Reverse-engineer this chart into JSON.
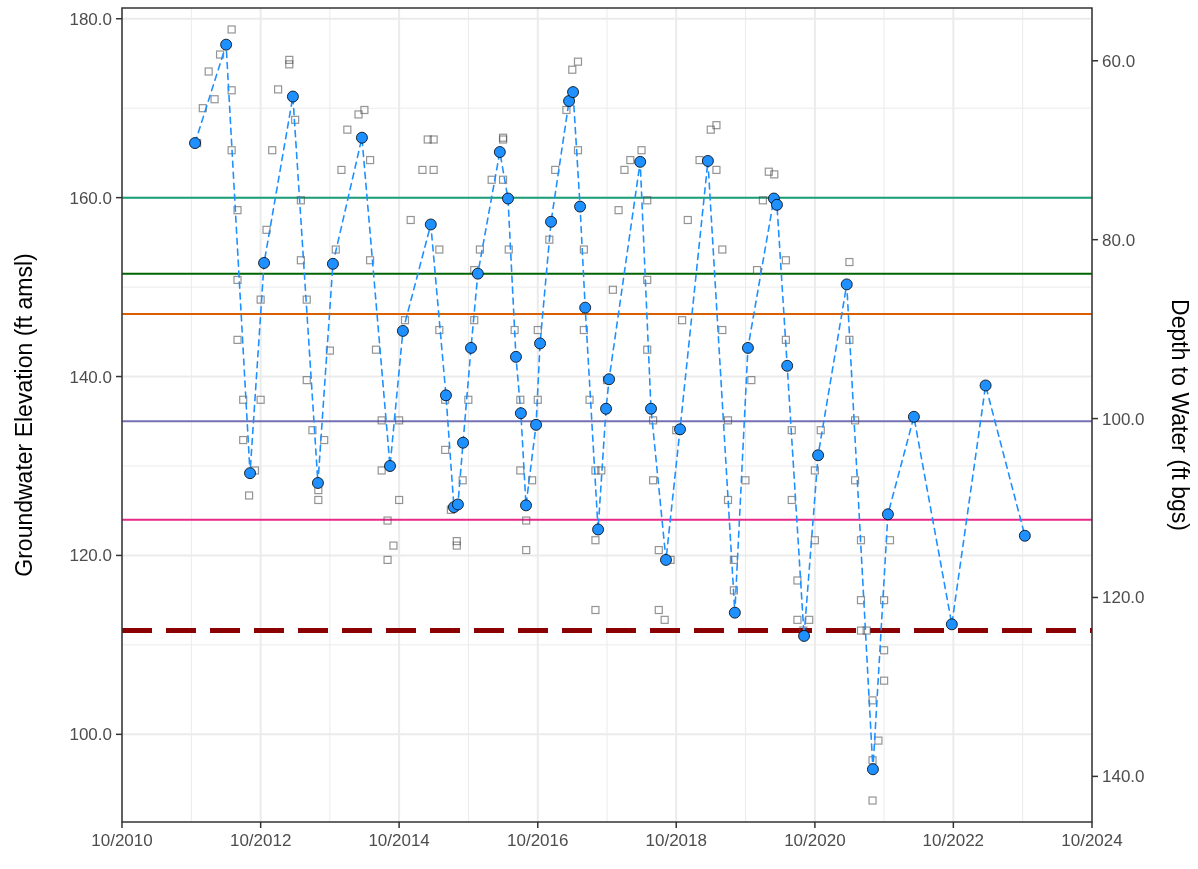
{
  "chart_data": {
    "type": "scatter",
    "ylabel": "Groundwater Elevation (ft amsl)",
    "y2label": "Depth to Water (ft bgs)",
    "xlim": [
      "2010-10",
      "2024-10"
    ],
    "xticks": [
      {
        "value": "2010-10",
        "label": "10/2010"
      },
      {
        "value": "2012-10",
        "label": "10/2012"
      },
      {
        "value": "2014-10",
        "label": "10/2014"
      },
      {
        "value": "2016-10",
        "label": "10/2016"
      },
      {
        "value": "2018-10",
        "label": "10/2018"
      },
      {
        "value": "2020-10",
        "label": "10/2020"
      },
      {
        "value": "2022-10",
        "label": "10/2022"
      },
      {
        "value": "2024-10",
        "label": "10/2024"
      }
    ],
    "ylim": [
      90.2,
      181.2
    ],
    "yticks": [
      {
        "value": 100,
        "label": "100.0"
      },
      {
        "value": 120,
        "label": "120.0"
      },
      {
        "value": 140,
        "label": "140.0"
      },
      {
        "value": 160,
        "label": "160.0"
      },
      {
        "value": 180,
        "label": "180.0"
      }
    ],
    "y2lim": [
      145.1,
      54.1
    ],
    "y2ticks": [
      {
        "value": 60,
        "label": "60.0"
      },
      {
        "value": 80,
        "label": "80.0"
      },
      {
        "value": 100,
        "label": "100.0"
      },
      {
        "value": 120,
        "label": "120.0"
      },
      {
        "value": 140,
        "label": "140.0"
      }
    ],
    "grid": true,
    "ref_lines": [
      {
        "axis": "y",
        "value": 160,
        "color": "#1b9e77"
      },
      {
        "axis": "y",
        "value": 151.5,
        "color": "#006400"
      },
      {
        "axis": "y",
        "value": 147,
        "color": "#d95f02"
      },
      {
        "axis": "y",
        "value": 135,
        "color": "#7570b3"
      },
      {
        "axis": "y",
        "value": 124,
        "color": "#e7298a"
      },
      {
        "axis": "y",
        "value": 111.6,
        "color": "#8b0000",
        "line_style": "dashed"
      }
    ],
    "series": [
      {
        "type": "scatter",
        "marker": "square",
        "color": "#4d4d4d",
        "x": [
          "2011-11",
          "2011-12",
          "2012-01",
          "2012-02",
          "2012-03",
          "2012-05",
          "2012-05",
          "2012-05",
          "2012-06",
          "2012-06",
          "2012-06",
          "2012-07",
          "2012-07",
          "2012-08",
          "2012-09",
          "2012-10",
          "2012-10",
          "2012-11",
          "2012-12",
          "2013-01",
          "2013-03",
          "2013-03",
          "2013-04",
          "2013-05",
          "2013-05",
          "2013-06",
          "2013-06",
          "2013-07",
          "2013-08",
          "2013-08",
          "2013-09",
          "2013-10",
          "2013-11",
          "2013-12",
          "2014-01",
          "2014-03",
          "2014-04",
          "2014-05",
          "2014-05",
          "2014-06",
          "2014-07",
          "2014-07",
          "2014-08",
          "2014-08",
          "2014-09",
          "2014-10",
          "2014-10",
          "2014-11",
          "2014-12",
          "2015-02",
          "2015-03",
          "2015-04",
          "2015-04",
          "2015-05",
          "2015-05",
          "2015-06",
          "2015-06",
          "2015-07",
          "2015-08",
          "2015-08",
          "2015-09",
          "2015-10",
          "2015-11",
          "2015-11",
          "2015-12",
          "2016-02",
          "2016-04",
          "2016-04",
          "2016-04",
          "2016-05",
          "2016-06",
          "2016-07",
          "2016-07",
          "2016-08",
          "2016-08",
          "2016-09",
          "2016-10",
          "2016-10",
          "2016-12",
          "2017-01",
          "2017-03",
          "2017-04",
          "2017-05",
          "2017-05",
          "2017-06",
          "2017-06",
          "2017-07",
          "2017-08",
          "2017-08",
          "2017-08",
          "2017-09",
          "2017-10",
          "2017-11",
          "2017-12",
          "2018-01",
          "2018-02",
          "2018-04",
          "2018-05",
          "2018-05",
          "2018-05",
          "2018-06",
          "2018-06",
          "2018-07",
          "2018-07",
          "2018-08",
          "2018-09",
          "2018-10",
          "2018-11",
          "2018-12",
          "2019-02",
          "2019-04",
          "2019-05",
          "2019-05",
          "2019-06",
          "2019-06",
          "2019-07",
          "2019-07",
          "2019-08",
          "2019-08",
          "2019-10",
          "2019-11",
          "2019-12",
          "2020-01",
          "2020-02",
          "2020-03",
          "2020-05",
          "2020-05",
          "2020-06",
          "2020-06",
          "2020-07",
          "2020-07",
          "2020-08",
          "2020-09",
          "2020-10",
          "2020-10",
          "2020-11",
          "2021-04",
          "2021-04",
          "2021-05",
          "2021-05",
          "2021-06",
          "2021-06",
          "2021-06",
          "2021-07",
          "2021-08",
          "2021-08",
          "2021-08",
          "2021-09",
          "2021-10",
          "2021-10",
          "2021-10",
          "2021-11"
        ],
        "values": [
          166.1,
          170.0,
          174.1,
          171.0,
          176.0,
          178.8,
          172.0,
          165.3,
          158.6,
          150.8,
          144.1,
          137.4,
          132.9,
          126.7,
          129.5,
          137.4,
          148.6,
          156.4,
          165.3,
          172.1,
          175.4,
          174.9,
          168.7,
          159.7,
          153.0,
          148.6,
          139.6,
          134.0,
          127.3,
          126.2,
          132.9,
          142.9,
          154.2,
          163.1,
          167.6,
          169.3,
          169.8,
          164.2,
          153.0,
          143.0,
          135.1,
          129.5,
          119.5,
          123.9,
          121.1,
          126.2,
          135.1,
          146.3,
          157.5,
          163.1,
          166.5,
          166.5,
          163.1,
          154.2,
          145.2,
          137.4,
          131.8,
          125.1,
          121.1,
          121.6,
          128.4,
          137.4,
          146.3,
          151.9,
          154.2,
          162.0,
          166.7,
          166.5,
          162.0,
          154.2,
          145.2,
          137.4,
          129.5,
          123.9,
          120.6,
          128.4,
          137.4,
          145.2,
          155.3,
          163.1,
          169.8,
          174.3,
          175.2,
          165.3,
          154.2,
          145.2,
          137.4,
          129.5,
          121.7,
          113.9,
          129.5,
          139.6,
          149.7,
          158.6,
          163.1,
          164.2,
          165.3,
          159.7,
          150.8,
          143.0,
          135.1,
          128.4,
          120.6,
          113.9,
          112.8,
          119.5,
          134.0,
          146.3,
          157.5,
          164.2,
          167.6,
          168.1,
          163.1,
          154.2,
          145.2,
          135.1,
          126.2,
          119.5,
          116.1,
          128.4,
          139.6,
          151.9,
          159.7,
          162.9,
          162.6,
          153.0,
          144.1,
          134.0,
          126.2,
          117.2,
          112.8,
          111.6,
          112.8,
          121.7,
          129.5,
          134.0,
          152.8,
          144.1,
          135.1,
          128.4,
          121.7,
          115.0,
          111.6,
          111.6,
          103.8,
          97.1,
          92.6,
          99.3,
          106.0,
          109.4,
          115.0,
          121.7
        ]
      },
      {
        "type": "line",
        "marker": "circle",
        "line_style": "dashed",
        "color": "#1e90ff",
        "x": [
          "2011-10-21",
          "2012-04-02",
          "2012-08-06",
          "2012-10-19",
          "2013-03-20",
          "2013-07-30",
          "2013-10-17",
          "2014-03-19",
          "2014-08-14",
          "2014-10-21",
          "2015-03-17",
          "2015-06-05",
          "2015-07-17",
          "2015-08-07",
          "2015-09-03",
          "2015-10-15",
          "2015-11-20",
          "2016-03-15",
          "2016-04-27",
          "2016-06-08",
          "2016-07-04",
          "2016-07-31",
          "2016-09-22",
          "2016-10-13",
          "2016-12-10",
          "2017-03-15",
          "2017-04-05",
          "2017-05-12",
          "2017-06-08",
          "2017-08-15",
          "2017-09-26",
          "2017-10-12",
          "2018-03-25",
          "2018-05-21",
          "2018-08-08",
          "2018-10-21",
          "2019-03-17",
          "2019-08-06",
          "2019-10-14",
          "2020-02-28",
          "2020-03-15",
          "2020-05-08",
          "2020-08-05",
          "2020-10-18",
          "2021-03-18",
          "2021-08-03",
          "2021-10-21",
          "2022-03-07",
          "2022-09-23",
          "2023-03-20",
          "2023-10-13"
        ],
        "values": [
          166.1,
          177.1,
          129.2,
          152.7,
          171.3,
          128.1,
          152.6,
          166.7,
          130.0,
          145.1,
          157.0,
          137.9,
          125.4,
          125.7,
          132.6,
          143.2,
          151.5,
          165.1,
          159.9,
          142.2,
          135.9,
          125.6,
          134.6,
          143.7,
          157.3,
          170.8,
          171.8,
          159.0,
          147.7,
          122.9,
          136.4,
          139.7,
          164.0,
          136.4,
          119.5,
          134.1,
          164.1,
          113.6,
          143.2,
          159.9,
          159.2,
          141.2,
          111.0,
          131.2,
          150.3,
          96.1,
          124.6,
          135.5,
          112.3,
          139.0,
          122.2
        ]
      }
    ]
  }
}
